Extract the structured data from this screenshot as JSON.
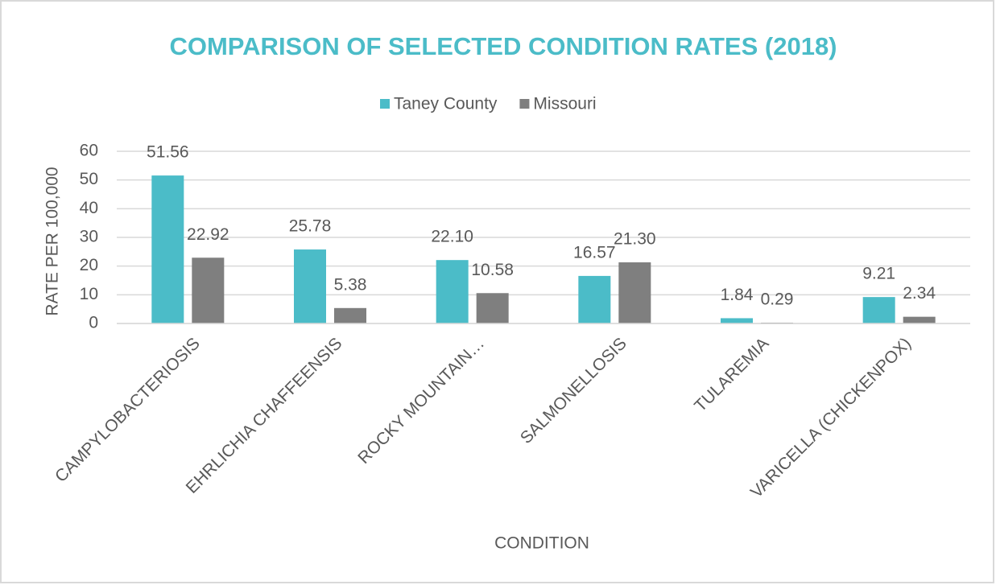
{
  "chart_data": {
    "type": "bar",
    "title": "COMPARISON OF SELECTED CONDITION RATES (2018)",
    "x_label": "CONDITION",
    "y_label": "RATE PER 100,000",
    "categories": [
      "CAMPYLOBACTERIOSIS",
      "EHRLICHIA CHAFFEENSIS",
      "ROCKY MOUNTAIN…",
      "SALMONELLOSIS",
      "TULAREMIA",
      "VARICELLA (CHICKENPOX)"
    ],
    "series": [
      {
        "name": "Taney County",
        "color": "#4bbcc8",
        "values": [
          51.56,
          25.78,
          22.1,
          16.57,
          1.84,
          9.21
        ],
        "value_labels": [
          "51.56",
          "25.78",
          "22.10",
          "16.57",
          "1.84",
          "9.21"
        ]
      },
      {
        "name": "Missouri",
        "color": "#7f7f7f",
        "values": [
          22.92,
          5.38,
          10.58,
          21.3,
          0.29,
          2.34
        ],
        "value_labels": [
          "22.92",
          "5.38",
          "10.58",
          "21.30",
          "0.29",
          "2.34"
        ]
      }
    ],
    "ylim": [
      0,
      60
    ],
    "yticks": [
      0,
      10,
      20,
      30,
      40,
      50,
      60
    ],
    "grid": true,
    "legend": "top"
  }
}
